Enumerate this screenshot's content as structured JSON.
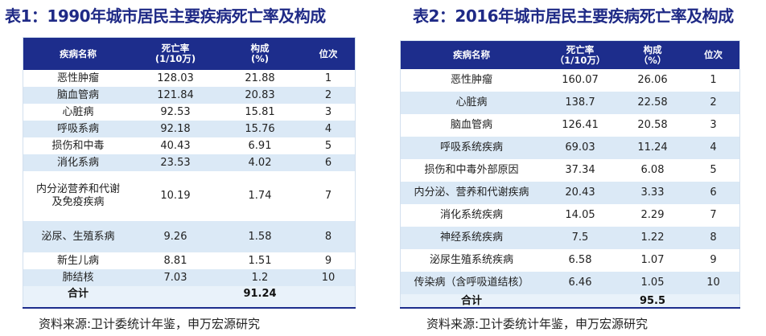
{
  "left": {
    "title": "表1：1990年城市居民主要疾病死亡率及构成",
    "headers": {
      "name": "疾病名称",
      "rate_l1": "死亡率",
      "rate_l2": "(1/10万)",
      "share_l1": "构成",
      "share_l2": "(%)",
      "rank": "位次"
    },
    "rows": [
      {
        "name": "恶性肿瘤",
        "rate": "128.03",
        "share": "21.88",
        "rank": "1"
      },
      {
        "name": "脑血管病",
        "rate": "121.84",
        "share": "20.83",
        "rank": "2"
      },
      {
        "name": "心脏病",
        "rate": "92.53",
        "share": "15.81",
        "rank": "3"
      },
      {
        "name": "呼吸系病",
        "rate": "92.18",
        "share": "15.76",
        "rank": "4"
      },
      {
        "name": "损伤和中毒",
        "rate": "40.43",
        "share": "6.91",
        "rank": "5"
      },
      {
        "name": "消化系病",
        "rate": "23.53",
        "share": "4.02",
        "rank": "6"
      },
      {
        "name": "内分泌营养和代谢\n及免疫疾病",
        "rate": "10.19",
        "share": "1.74",
        "rank": "7"
      },
      {
        "name": "泌尿、生殖系病",
        "rate": "9.26",
        "share": "1.58",
        "rank": "8"
      },
      {
        "name": "新生儿病",
        "rate": "8.81",
        "share": "1.51",
        "rank": "9"
      },
      {
        "name": "肺结核",
        "rate": "7.03",
        "share": "1.2",
        "rank": "10"
      }
    ],
    "total": {
      "label": "合计",
      "share": "91.24"
    },
    "source": "资料来源:卫计委统计年鉴，申万宏源研究"
  },
  "right": {
    "title": "表2：2016年城市居民主要疾病死亡率及构成",
    "headers": {
      "name": "疾病名称",
      "rate_l1": "死亡率",
      "rate_l2": "（1/10万）",
      "share_l1": "构成",
      "share_l2": "（%）",
      "rank": "位次"
    },
    "rows": [
      {
        "name": "恶性肿瘤",
        "rate": "160.07",
        "share": "26.06",
        "rank": "1"
      },
      {
        "name": "心脏病",
        "rate": "138.7",
        "share": "22.58",
        "rank": "2"
      },
      {
        "name": "脑血管病",
        "rate": "126.41",
        "share": "20.58",
        "rank": "3"
      },
      {
        "name": "呼吸系统疾病",
        "rate": "69.03",
        "share": "11.24",
        "rank": "4"
      },
      {
        "name": "损伤和中毒外部原因",
        "rate": "37.34",
        "share": "6.08",
        "rank": "5"
      },
      {
        "name": "内分泌、营养和代谢疾病",
        "rate": "20.43",
        "share": "3.33",
        "rank": "6"
      },
      {
        "name": "消化系统疾病",
        "rate": "14.05",
        "share": "2.29",
        "rank": "7"
      },
      {
        "name": "神经系统疾病",
        "rate": "7.5",
        "share": "1.22",
        "rank": "8"
      },
      {
        "name": "泌尿生殖系统疾病",
        "rate": "6.58",
        "share": "1.07",
        "rank": "9"
      },
      {
        "name": "传染病（含呼吸道结核）",
        "rate": "6.46",
        "share": "1.05",
        "rank": "10"
      }
    ],
    "total": {
      "label": "合计",
      "share": "95.5"
    },
    "source": "资料来源:卫计委统计年鉴，申万宏源研究"
  }
}
